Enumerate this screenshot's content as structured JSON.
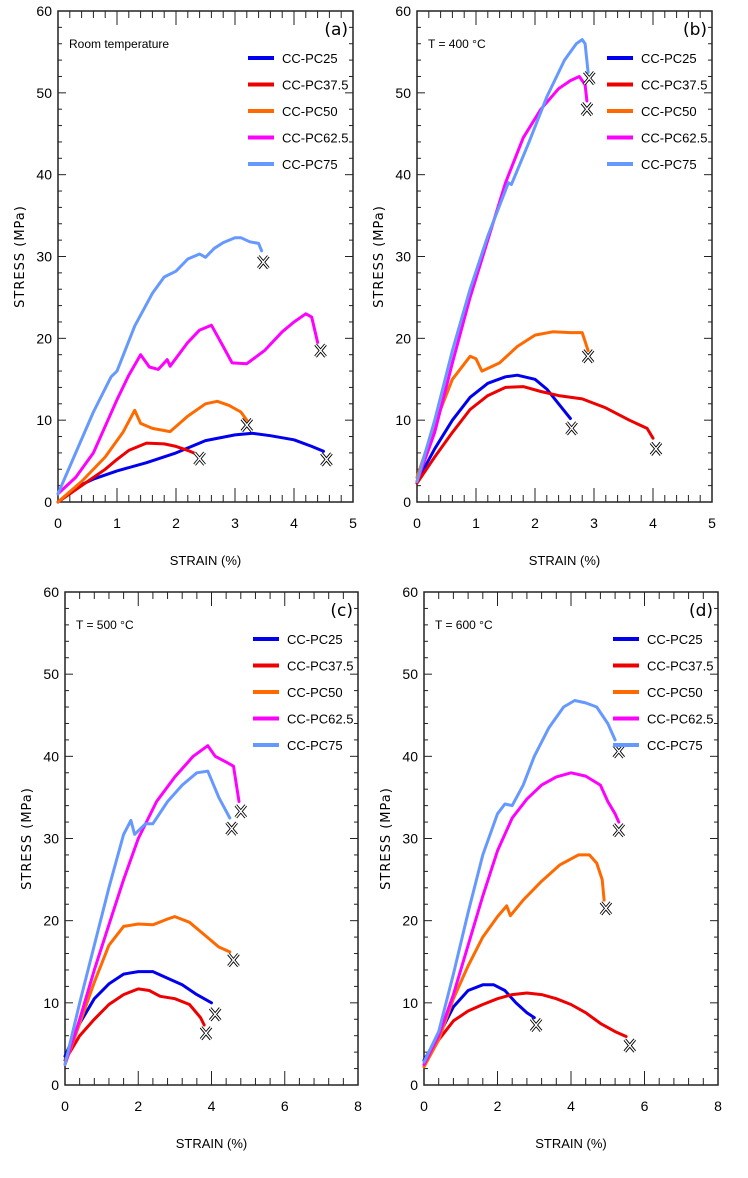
{
  "chart_data": [
    {
      "type": "line",
      "panel": "(a)",
      "annotation": "Room temperature",
      "xlabel": "STRAIN (%)",
      "ylabel": "STRESS (MPa)",
      "xlim": [
        0,
        5
      ],
      "ylim": [
        0,
        60
      ],
      "xticks": [
        0,
        1,
        2,
        3,
        4,
        5
      ],
      "yticks": [
        0,
        10,
        20,
        30,
        40,
        50,
        60
      ],
      "legend": [
        "CC-PC25",
        "CC-PC37.5",
        "CC-PC50",
        "CC-PC62.5",
        "CC-PC75"
      ],
      "legend_position": "top-right",
      "series": [
        {
          "name": "CC-PC25",
          "color": "#0000ee",
          "failure": [
            4.55,
            5.2
          ],
          "x": [
            0,
            0.3,
            0.6,
            1.0,
            1.5,
            2.0,
            2.5,
            3.0,
            3.3,
            3.6,
            4.0,
            4.3,
            4.5
          ],
          "y": [
            0,
            1.8,
            2.8,
            3.8,
            4.8,
            6.0,
            7.5,
            8.2,
            8.4,
            8.1,
            7.6,
            6.8,
            6.2
          ]
        },
        {
          "name": "CC-PC37.5",
          "color": "#ee0000",
          "failure": [
            2.4,
            5.3
          ],
          "x": [
            0,
            0.4,
            0.8,
            1.0,
            1.2,
            1.5,
            1.8,
            2.0,
            2.2,
            2.3
          ],
          "y": [
            0,
            2.0,
            4.0,
            5.2,
            6.3,
            7.2,
            7.1,
            6.8,
            6.3,
            6.0
          ]
        },
        {
          "name": "CC-PC50",
          "color": "#ff6a00",
          "failure": [
            3.2,
            9.4
          ],
          "x": [
            0,
            0.4,
            0.8,
            1.1,
            1.3,
            1.4,
            1.6,
            1.9,
            2.2,
            2.5,
            2.7,
            2.9,
            3.1,
            3.2
          ],
          "y": [
            0,
            2.5,
            5.5,
            8.5,
            11.2,
            9.6,
            9.0,
            8.6,
            10.5,
            12.0,
            12.3,
            11.8,
            11.0,
            10.0
          ]
        },
        {
          "name": "CC-PC62.5",
          "color": "#ff00ff",
          "failure": [
            4.45,
            18.5
          ],
          "x": [
            0,
            0.3,
            0.6,
            1.0,
            1.2,
            1.4,
            1.55,
            1.7,
            1.85,
            1.9,
            2.2,
            2.4,
            2.6,
            2.8,
            2.95,
            3.2,
            3.5,
            3.8,
            4.0,
            4.2,
            4.3,
            4.4
          ],
          "y": [
            1.0,
            3.0,
            6.0,
            12.5,
            15.5,
            18.0,
            16.5,
            16.2,
            17.4,
            16.6,
            19.5,
            21.0,
            21.6,
            19.0,
            17.0,
            16.9,
            18.5,
            20.8,
            22.0,
            23.0,
            22.6,
            19.5
          ]
        },
        {
          "name": "CC-PC75",
          "color": "#6699ff",
          "failure": [
            3.48,
            29.3
          ],
          "x": [
            0,
            0.3,
            0.6,
            0.9,
            1.0,
            1.3,
            1.6,
            1.8,
            2.0,
            2.2,
            2.4,
            2.5,
            2.65,
            2.8,
            3.0,
            3.1,
            3.25,
            3.4,
            3.45
          ],
          "y": [
            1.0,
            6.0,
            11.0,
            15.3,
            16.0,
            21.5,
            25.5,
            27.5,
            28.2,
            29.7,
            30.3,
            29.9,
            31.0,
            31.7,
            32.3,
            32.3,
            31.8,
            31.6,
            30.7
          ]
        }
      ]
    },
    {
      "type": "line",
      "panel": "(b)",
      "annotation": "T = 400 °C",
      "xlabel": "STRAIN (%)",
      "ylabel": "STRESS (MPa)",
      "xlim": [
        0,
        5
      ],
      "ylim": [
        0,
        60
      ],
      "xticks": [
        0,
        1,
        2,
        3,
        4,
        5
      ],
      "yticks": [
        0,
        10,
        20,
        30,
        40,
        50,
        60
      ],
      "legend": [
        "CC-PC25",
        "CC-PC37.5",
        "CC-PC50",
        "CC-PC62.5",
        "CC-PC75"
      ],
      "legend_position": "top-right",
      "series": [
        {
          "name": "CC-PC25",
          "color": "#0000ee",
          "failure": [
            2.62,
            9.0
          ],
          "x": [
            0,
            0.3,
            0.6,
            0.9,
            1.2,
            1.5,
            1.7,
            2.0,
            2.2,
            2.4,
            2.6
          ],
          "y": [
            2.5,
            6.5,
            10.0,
            12.8,
            14.5,
            15.3,
            15.5,
            15.0,
            13.8,
            12.0,
            10.2
          ]
        },
        {
          "name": "CC-PC37.5",
          "color": "#ee0000",
          "failure": [
            4.05,
            6.5
          ],
          "x": [
            0,
            0.3,
            0.6,
            0.9,
            1.2,
            1.5,
            1.8,
            2.1,
            2.4,
            2.8,
            3.2,
            3.6,
            3.9,
            4.0
          ],
          "y": [
            2.3,
            5.5,
            8.5,
            11.3,
            13.0,
            14.0,
            14.1,
            13.5,
            13.0,
            12.6,
            11.5,
            10.0,
            9.0,
            7.8
          ]
        },
        {
          "name": "CC-PC50",
          "color": "#ff6a00",
          "failure": [
            2.9,
            17.8
          ],
          "x": [
            0,
            0.3,
            0.6,
            0.9,
            1.0,
            1.1,
            1.4,
            1.7,
            2.0,
            2.3,
            2.6,
            2.8,
            2.9
          ],
          "y": [
            3.0,
            9.5,
            15.0,
            17.8,
            17.5,
            16.0,
            17.0,
            19.0,
            20.4,
            20.8,
            20.7,
            20.7,
            18.5
          ]
        },
        {
          "name": "CC-PC62.5",
          "color": "#ff00ff",
          "failure": [
            2.88,
            48.0
          ],
          "x": [
            0,
            0.3,
            0.6,
            0.9,
            1.2,
            1.5,
            1.8,
            2.1,
            2.4,
            2.6,
            2.75,
            2.85,
            2.88
          ],
          "y": [
            2.5,
            8.5,
            17.0,
            25.0,
            32.0,
            39.0,
            44.5,
            48.0,
            50.5,
            51.5,
            52.0,
            51.0,
            49.0
          ]
        },
        {
          "name": "CC-PC75",
          "color": "#6699ff",
          "failure": [
            2.92,
            51.8
          ],
          "x": [
            0,
            0.3,
            0.6,
            0.9,
            1.2,
            1.55,
            1.6,
            1.9,
            2.2,
            2.5,
            2.7,
            2.8,
            2.85,
            2.9
          ],
          "y": [
            2.5,
            10.0,
            18.5,
            26.0,
            32.5,
            39.0,
            38.8,
            44.0,
            49.5,
            54.0,
            56.0,
            56.5,
            56.0,
            52.5
          ]
        }
      ]
    },
    {
      "type": "line",
      "panel": "(c)",
      "annotation": "T = 500 °C",
      "xlabel": "STRAIN (%)",
      "ylabel": "STRESS (MPa)",
      "xlim": [
        0,
        8
      ],
      "ylim": [
        0,
        60
      ],
      "xticks": [
        0,
        2,
        4,
        6,
        8
      ],
      "yticks": [
        0,
        10,
        20,
        30,
        40,
        50,
        60
      ],
      "legend": [
        "CC-PC25",
        "CC-PC37.5",
        "CC-PC50",
        "CC-PC62.5",
        "CC-PC75"
      ],
      "legend_position": "top-right",
      "series": [
        {
          "name": "CC-PC25",
          "color": "#0000ee",
          "failure": [
            4.1,
            8.6
          ],
          "x": [
            0,
            0.4,
            0.8,
            1.2,
            1.6,
            2.0,
            2.4,
            2.8,
            3.2,
            3.6,
            4.0
          ],
          "y": [
            3.5,
            7.5,
            10.5,
            12.3,
            13.5,
            13.8,
            13.8,
            13.0,
            12.2,
            11.0,
            10.0
          ]
        },
        {
          "name": "CC-PC37.5",
          "color": "#ee0000",
          "failure": [
            3.85,
            6.3
          ],
          "x": [
            0,
            0.4,
            0.8,
            1.2,
            1.6,
            2.0,
            2.3,
            2.6,
            3.0,
            3.4,
            3.7,
            3.8
          ],
          "y": [
            3.0,
            6.0,
            8.0,
            9.8,
            11.0,
            11.7,
            11.5,
            10.8,
            10.5,
            9.8,
            8.2,
            7.3
          ]
        },
        {
          "name": "CC-PC50",
          "color": "#ff6a00",
          "failure": [
            4.6,
            15.2
          ],
          "x": [
            0,
            0.4,
            0.8,
            1.2,
            1.6,
            2.0,
            2.4,
            2.8,
            3.0,
            3.4,
            3.8,
            4.2,
            4.5
          ],
          "y": [
            2.5,
            7.5,
            12.5,
            17.0,
            19.3,
            19.6,
            19.5,
            20.2,
            20.5,
            19.8,
            18.3,
            16.8,
            16.2
          ]
        },
        {
          "name": "CC-PC62.5",
          "color": "#ff00ff",
          "failure": [
            4.8,
            33.3
          ],
          "x": [
            0,
            0.4,
            0.8,
            1.2,
            1.6,
            2.0,
            2.5,
            3.0,
            3.5,
            3.9,
            4.1,
            4.4,
            4.6,
            4.75
          ],
          "y": [
            2.5,
            8.0,
            14.0,
            19.5,
            25.0,
            30.0,
            34.5,
            37.5,
            40.0,
            41.3,
            40.0,
            39.3,
            38.8,
            34.5
          ]
        },
        {
          "name": "CC-PC75",
          "color": "#6699ff",
          "failure": [
            4.55,
            31.2
          ],
          "x": [
            0,
            0.4,
            0.8,
            1.2,
            1.6,
            1.8,
            1.9,
            2.2,
            2.4,
            2.8,
            3.2,
            3.6,
            3.9,
            4.2,
            4.5
          ],
          "y": [
            2.5,
            10.0,
            17.0,
            24.0,
            30.5,
            32.2,
            30.5,
            31.8,
            31.8,
            34.5,
            36.5,
            38.0,
            38.2,
            35.0,
            32.5
          ]
        }
      ]
    },
    {
      "type": "line",
      "panel": "(d)",
      "annotation": "T = 600 °C",
      "xlabel": "STRAIN (%)",
      "ylabel": "STRESS (MPa)",
      "xlim": [
        0,
        8
      ],
      "ylim": [
        0,
        60
      ],
      "xticks": [
        0,
        2,
        4,
        6,
        8
      ],
      "yticks": [
        0,
        10,
        20,
        30,
        40,
        50,
        60
      ],
      "legend": [
        "CC-PC25",
        "CC-PC37.5",
        "CC-PC50",
        "CC-PC62.5",
        "CC-PC75"
      ],
      "legend_position": "top-right",
      "series": [
        {
          "name": "CC-PC25",
          "color": "#0000ee",
          "failure": [
            3.05,
            7.3
          ],
          "x": [
            0,
            0.4,
            0.8,
            1.2,
            1.6,
            1.9,
            2.2,
            2.5,
            2.8,
            3.0
          ],
          "y": [
            3.0,
            6.0,
            9.5,
            11.5,
            12.2,
            12.2,
            11.5,
            10.0,
            8.8,
            8.2
          ]
        },
        {
          "name": "CC-PC37.5",
          "color": "#ee0000",
          "failure": [
            5.6,
            4.8
          ],
          "x": [
            0,
            0.4,
            0.8,
            1.2,
            1.6,
            2.0,
            2.4,
            2.8,
            3.2,
            3.6,
            4.0,
            4.4,
            4.8,
            5.2,
            5.5
          ],
          "y": [
            2.5,
            5.5,
            7.8,
            9.0,
            9.8,
            10.5,
            11.0,
            11.2,
            11.0,
            10.5,
            9.8,
            8.8,
            7.5,
            6.5,
            5.9
          ]
        },
        {
          "name": "CC-PC50",
          "color": "#ff6a00",
          "failure": [
            4.95,
            21.5
          ],
          "x": [
            0,
            0.4,
            0.8,
            1.2,
            1.6,
            2.0,
            2.25,
            2.35,
            2.7,
            3.2,
            3.7,
            4.2,
            4.5,
            4.7,
            4.85,
            4.9
          ],
          "y": [
            2.2,
            5.5,
            10.5,
            14.5,
            18.0,
            20.5,
            21.8,
            20.6,
            22.5,
            24.8,
            26.8,
            28.0,
            28.0,
            27.0,
            25.0,
            22.5
          ]
        },
        {
          "name": "CC-PC62.5",
          "color": "#ff00ff",
          "failure": [
            5.3,
            31.0
          ],
          "x": [
            0,
            0.4,
            0.8,
            1.2,
            1.6,
            2.0,
            2.4,
            2.8,
            3.2,
            3.6,
            4.0,
            4.4,
            4.8,
            5.0,
            5.2,
            5.3
          ],
          "y": [
            2.5,
            6.0,
            11.0,
            17.0,
            23.0,
            28.5,
            32.5,
            34.8,
            36.5,
            37.5,
            38.0,
            37.6,
            36.5,
            34.5,
            33.0,
            32.0
          ]
        },
        {
          "name": "CC-PC75",
          "color": "#6699ff",
          "failure": [
            5.3,
            40.6
          ],
          "x": [
            0,
            0.4,
            0.8,
            1.2,
            1.6,
            2.0,
            2.2,
            2.4,
            2.7,
            3.0,
            3.4,
            3.8,
            4.1,
            4.4,
            4.7,
            5.0,
            5.2
          ],
          "y": [
            2.8,
            6.5,
            13.5,
            21.0,
            28.0,
            33.0,
            34.2,
            34.0,
            36.5,
            40.0,
            43.5,
            46.0,
            46.8,
            46.5,
            46.0,
            44.0,
            42.0
          ]
        }
      ]
    }
  ]
}
